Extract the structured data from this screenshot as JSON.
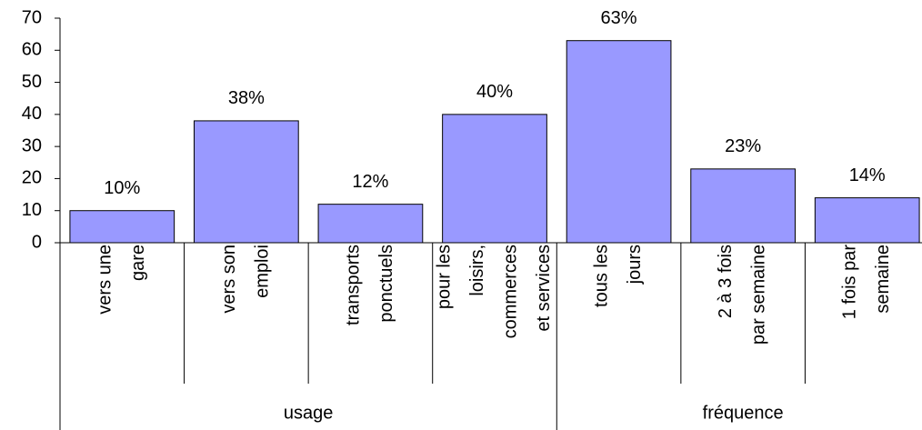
{
  "chart_data": {
    "type": "bar",
    "color": "#9999ff",
    "ylim": [
      0,
      70
    ],
    "yticks": [
      0,
      10,
      20,
      30,
      40,
      50,
      60,
      70
    ],
    "groups": [
      {
        "name": "usage",
        "categories": [
          [
            "vers une",
            "gare"
          ],
          [
            "vers son",
            "emploi"
          ],
          [
            "transports",
            "ponctuels"
          ],
          [
            "pour les",
            "loisirs,",
            "commerces",
            "et services"
          ]
        ],
        "values": [
          10,
          38,
          12,
          40
        ],
        "value_labels": [
          "10%",
          "38%",
          "12%",
          "40%"
        ]
      },
      {
        "name": "fréquence",
        "categories": [
          [
            "tous les",
            "jours"
          ],
          [
            "2 à 3 fois",
            "par semaine"
          ],
          [
            "1 fois par",
            "semaine"
          ]
        ],
        "values": [
          63,
          23,
          14
        ],
        "value_labels": [
          "63%",
          "23%",
          "14%"
        ]
      }
    ]
  }
}
